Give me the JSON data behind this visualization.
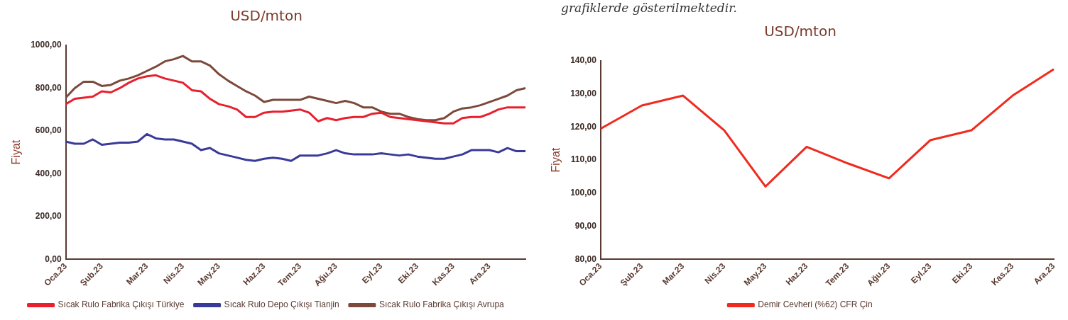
{
  "chart_data": [
    {
      "type": "line",
      "title": "USD/mton",
      "ylabel": "Fiyat",
      "categories": [
        "Oca.23",
        null,
        null,
        null,
        "Şub.23",
        null,
        null,
        null,
        null,
        "Mar.23",
        null,
        null,
        null,
        "Nis.23",
        null,
        null,
        null,
        "May.23",
        null,
        null,
        null,
        null,
        "Haz.23",
        null,
        null,
        null,
        "Tem.23",
        null,
        null,
        null,
        "Ağu.23",
        null,
        null,
        null,
        null,
        "Eyl.23",
        null,
        null,
        null,
        "Eki.23",
        null,
        null,
        null,
        "Kas.23",
        null,
        null,
        null,
        "Ara.23",
        null,
        null,
        null,
        null
      ],
      "series": [
        {
          "name": "Sıcak Rulo Fabrika Çıkışı Türkiye",
          "color": "#e8202e",
          "values": [
            725,
            750,
            755,
            760,
            785,
            780,
            800,
            825,
            845,
            855,
            860,
            845,
            835,
            825,
            790,
            785,
            750,
            725,
            715,
            700,
            665,
            665,
            685,
            690,
            690,
            695,
            700,
            685,
            645,
            660,
            650,
            660,
            665,
            665,
            680,
            685,
            665,
            660,
            655,
            650,
            645,
            640,
            635,
            635,
            660,
            665,
            665,
            680,
            700,
            710,
            710,
            710
          ]
        },
        {
          "name": "Sıcak Rulo Depo Çıkışı Tianjin",
          "color": "#3a3a9a",
          "values": [
            550,
            540,
            540,
            560,
            535,
            540,
            545,
            545,
            550,
            585,
            565,
            560,
            560,
            550,
            540,
            510,
            520,
            495,
            485,
            475,
            465,
            460,
            470,
            475,
            470,
            460,
            485,
            485,
            485,
            495,
            510,
            495,
            490,
            490,
            490,
            495,
            490,
            485,
            490,
            480,
            475,
            470,
            470,
            480,
            490,
            510,
            510,
            510,
            500,
            520,
            505,
            505
          ]
        },
        {
          "name": "Sıcak Rulo Fabrika Çıkışı Avrupa",
          "color": "#7b4a3a",
          "values": [
            755,
            800,
            830,
            830,
            810,
            815,
            835,
            845,
            860,
            880,
            900,
            925,
            935,
            950,
            925,
            925,
            905,
            865,
            835,
            810,
            785,
            765,
            735,
            745,
            745,
            745,
            745,
            760,
            750,
            740,
            730,
            740,
            730,
            710,
            710,
            690,
            680,
            680,
            665,
            655,
            650,
            650,
            660,
            690,
            705,
            710,
            720,
            735,
            750,
            765,
            790,
            800
          ]
        }
      ],
      "ylim": [
        0,
        1000
      ],
      "yticks": [
        {
          "value": 0,
          "label": "0,00"
        },
        {
          "value": 200,
          "label": "200,00"
        },
        {
          "value": 400,
          "label": "400,00"
        },
        {
          "value": 600,
          "label": "600,00"
        },
        {
          "value": 800,
          "label": "800,00"
        },
        {
          "value": 1000,
          "label": "1000,00"
        }
      ],
      "grid": false,
      "legend": "bottom"
    },
    {
      "type": "line",
      "title": "USD/mton",
      "ylabel": "Fiyat",
      "annotations": [
        "grafiklerde gösterilmektedir."
      ],
      "categories": [
        "Oca.23",
        "Şub.23",
        "Mar.23",
        "Nis.23",
        "May.23",
        "Haz.23",
        "Tem.23",
        "Ağu.23",
        "Eyl.23",
        "Eki.23",
        "Kas.23",
        "Ara.23"
      ],
      "series": [
        {
          "name": "Demir Cevheri (%62) CFR Çin",
          "color": "#f02a1e",
          "values": [
            119.5,
            126.5,
            129.5,
            119,
            102,
            114,
            109,
            104.5,
            116,
            119,
            129.5,
            137.5
          ]
        }
      ],
      "ylim": [
        80,
        140
      ],
      "yticks": [
        {
          "value": 80,
          "label": "80,00"
        },
        {
          "value": 90,
          "label": "90,00"
        },
        {
          "value": 100,
          "label": "100,00"
        },
        {
          "value": 110,
          "label": "110,00"
        },
        {
          "value": 120,
          "label": "120,00"
        },
        {
          "value": 130,
          "label": "130,00"
        },
        {
          "value": 140,
          "label": "140,00"
        }
      ],
      "grid": false,
      "legend": "bottom"
    }
  ]
}
